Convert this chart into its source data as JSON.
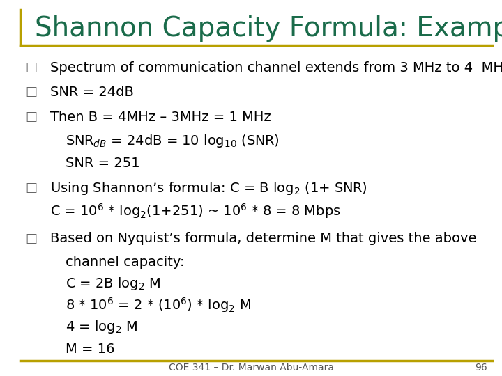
{
  "title": "Shannon Capacity Formula: Example",
  "title_color": "#1a6b4a",
  "bg_color": "#ffffff",
  "border_color": "#b8a000",
  "text_color": "#000000",
  "footer": "COE 341 – Dr. Marwan Abu-Amara",
  "page_num": "96",
  "bullet_char": "□",
  "font_size_title": 28,
  "font_size_body": 14,
  "font_size_footer": 10
}
